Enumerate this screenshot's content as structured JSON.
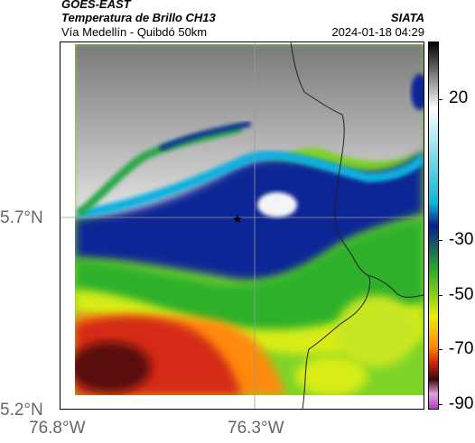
{
  "header": {
    "satellite": "GOES-EAST",
    "title": "Temperatura de Brillo CH13",
    "organization": "SIATA",
    "subtitle": "Vía Medellín - Quibdó 50km",
    "datetime": "2024-01-18 04:29"
  },
  "map": {
    "lat_ticks": [
      "5.7°N",
      "5.2°N"
    ],
    "lon_ticks": [
      "76.8°W",
      "76.3°W"
    ],
    "marker": "★"
  },
  "colorbar": {
    "labels": [
      "20",
      "-30",
      "-50",
      "-70",
      "-90"
    ],
    "stops": [
      "#000000",
      "#ffffff",
      "#06b6d6",
      "#0a1f8c",
      "#2ba82b",
      "#e8f000",
      "#ff8a00",
      "#c81e0a",
      "#3c0a0a",
      "#e0a0e0",
      "#b040b0"
    ]
  },
  "colors": {
    "clear_cloud_gray": "#9a9a9a",
    "high_cold_cloud_red": "#d42a12",
    "warm_green": "#35b82e",
    "deep_blue": "#0b1a8a"
  }
}
